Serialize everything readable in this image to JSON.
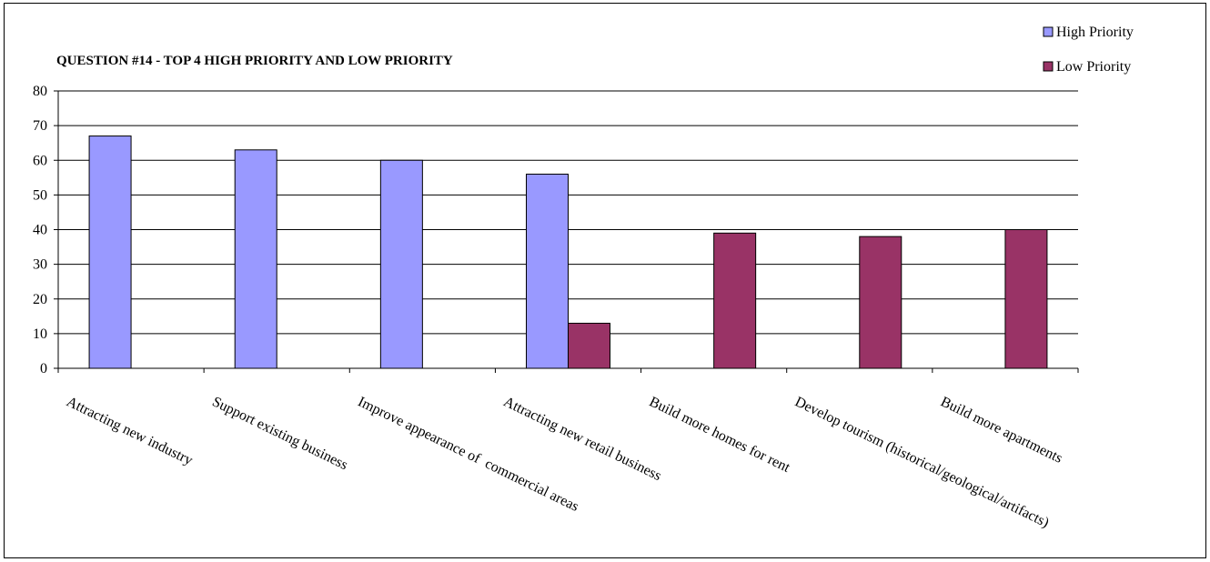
{
  "chart_data": {
    "type": "bar",
    "title": "QUESTION #14 - TOP 4 HIGH PRIORITY AND LOW PRIORITY",
    "xlabel": "",
    "ylabel": "",
    "ylim": [
      0,
      80
    ],
    "yticks": [
      0,
      10,
      20,
      30,
      40,
      50,
      60,
      70,
      80
    ],
    "grid": true,
    "legend_position": "top-right",
    "categories": [
      "Attracting new industry",
      "Support existing business",
      "Improve appearance of  commercial areas",
      "Attracting new retail business",
      "Build more homes for rent",
      "Develop tourism (historical/geological/artifacts)",
      "Build more apartments"
    ],
    "series": [
      {
        "name": "High Priority",
        "color": "#9999FF",
        "values": [
          67,
          63,
          60,
          56,
          null,
          null,
          null
        ]
      },
      {
        "name": "Low Priority",
        "color": "#993366",
        "values": [
          null,
          null,
          null,
          13,
          39,
          38,
          40
        ]
      }
    ]
  }
}
